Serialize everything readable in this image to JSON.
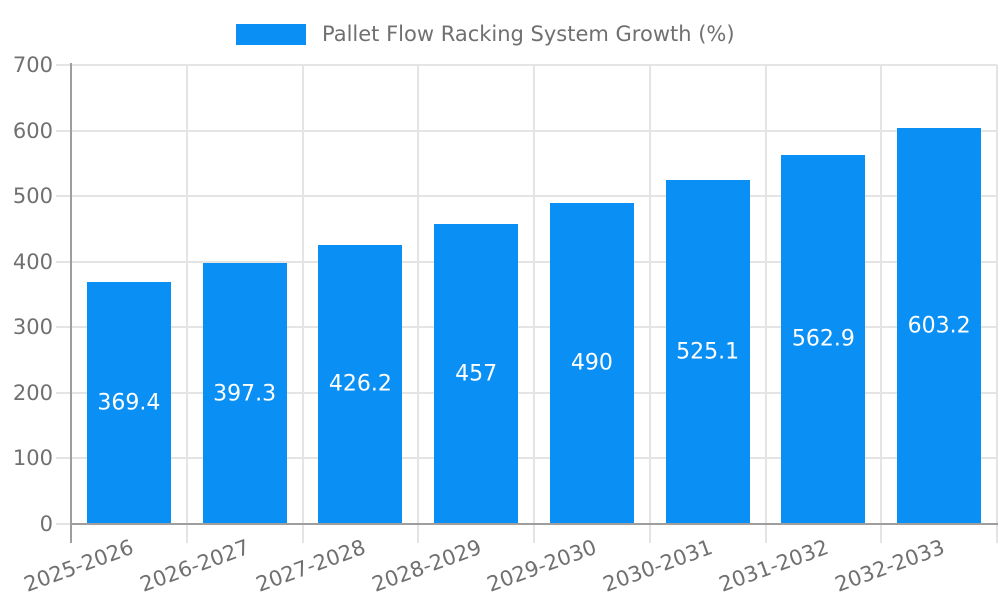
{
  "chart_data": {
    "type": "bar",
    "title": "Pallet Flow Racking System Growth (%)",
    "categories": [
      "2025-2026",
      "2026-2027",
      "2027-2028",
      "2028-2029",
      "2029-2030",
      "2030-2031",
      "2031-2032",
      "2032-2033"
    ],
    "values": [
      369.4,
      397.3,
      426.2,
      457,
      490,
      525.1,
      562.9,
      603.2
    ],
    "xlabel": "",
    "ylabel": "",
    "ylim": [
      0,
      700
    ],
    "yticks": [
      0,
      100,
      200,
      300,
      400,
      500,
      600,
      700
    ],
    "grid": true,
    "legend_position": "top-center",
    "bar_color": "#0a90f5",
    "value_label_color": "#ffffff",
    "grid_color": "#e4e4e4",
    "axis_color": "#9e9e9e",
    "text_color": "#707070",
    "x_label_rotation_deg": -20
  }
}
